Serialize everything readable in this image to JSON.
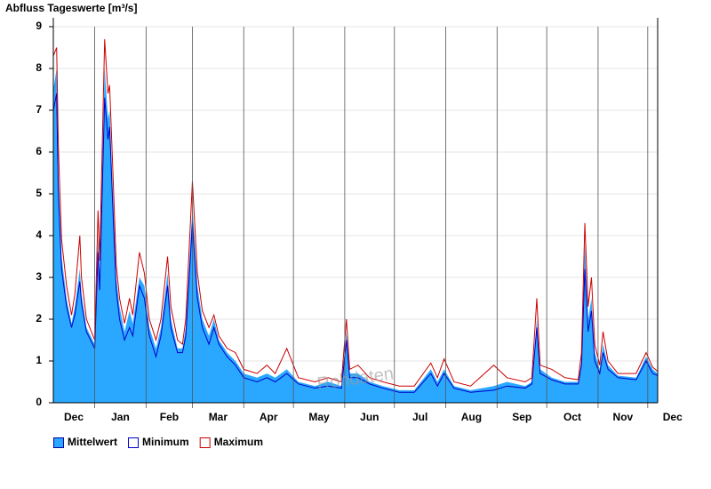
{
  "chart_data": {
    "type": "area-line",
    "title": "Abfluss Tageswerte [m³/s]",
    "watermark": "Rohdaten",
    "x": [
      0,
      2,
      3,
      4,
      5,
      8,
      11,
      13,
      16,
      17,
      20,
      25,
      27,
      28,
      31,
      33,
      34,
      36,
      38,
      40,
      43,
      46,
      48,
      52,
      55,
      58,
      62,
      65,
      69,
      71,
      75,
      78,
      80,
      84,
      87,
      90,
      94,
      97,
      100,
      105,
      110,
      115,
      123,
      129,
      134,
      141,
      148,
      158,
      166,
      174,
      177,
      179,
      184,
      191,
      199,
      209,
      218,
      228,
      232,
      236,
      242,
      252,
      266,
      274,
      285,
      289,
      292,
      294,
      301,
      309,
      317,
      319,
      321,
      323,
      325,
      327,
      330,
      332,
      335,
      341,
      352,
      358,
      362,
      365
    ],
    "series": [
      {
        "name": "Mittelwert",
        "style": "area",
        "color": "#2aa8ff",
        "border": "#0000aa",
        "values": [
          7.5,
          8.0,
          5.5,
          4.5,
          3.5,
          2.5,
          1.9,
          2.3,
          3.2,
          2.6,
          1.8,
          1.4,
          4.0,
          3.0,
          8.0,
          6.8,
          7.0,
          5.0,
          3.0,
          2.3,
          1.7,
          2.2,
          1.9,
          3.0,
          2.8,
          1.8,
          1.3,
          1.8,
          3.1,
          2.0,
          1.3,
          1.3,
          1.8,
          4.7,
          2.8,
          2.0,
          1.6,
          2.0,
          1.5,
          1.2,
          1.0,
          0.7,
          0.6,
          0.7,
          0.6,
          0.8,
          0.5,
          0.4,
          0.5,
          0.4,
          1.7,
          0.7,
          0.7,
          0.5,
          0.4,
          0.3,
          0.3,
          0.8,
          0.5,
          0.8,
          0.4,
          0.3,
          0.4,
          0.5,
          0.4,
          0.5,
          2.0,
          0.8,
          0.6,
          0.5,
          0.5,
          1.0,
          3.8,
          2.0,
          2.5,
          1.2,
          0.8,
          1.4,
          0.9,
          0.65,
          0.6,
          1.1,
          0.8,
          0.7
        ]
      },
      {
        "name": "Minimum",
        "style": "line",
        "color": "#0000cc",
        "values": [
          7.0,
          7.4,
          5.0,
          4.1,
          3.2,
          2.3,
          1.8,
          2.1,
          2.9,
          2.4,
          1.7,
          1.3,
          3.6,
          2.7,
          7.3,
          6.3,
          6.6,
          4.6,
          2.7,
          2.0,
          1.5,
          1.8,
          1.6,
          2.8,
          2.5,
          1.6,
          1.1,
          1.6,
          2.8,
          1.8,
          1.2,
          1.2,
          1.6,
          4.3,
          2.5,
          1.8,
          1.4,
          1.8,
          1.4,
          1.1,
          0.9,
          0.6,
          0.5,
          0.6,
          0.5,
          0.7,
          0.45,
          0.35,
          0.4,
          0.35,
          1.5,
          0.6,
          0.6,
          0.45,
          0.35,
          0.25,
          0.25,
          0.7,
          0.4,
          0.7,
          0.35,
          0.25,
          0.3,
          0.4,
          0.35,
          0.45,
          1.8,
          0.7,
          0.55,
          0.45,
          0.45,
          0.9,
          3.2,
          1.7,
          2.2,
          1.0,
          0.7,
          1.2,
          0.8,
          0.6,
          0.55,
          1.0,
          0.7,
          0.65
        ]
      },
      {
        "name": "Maximum",
        "style": "line",
        "color": "#cc0000",
        "values": [
          8.3,
          8.5,
          6.2,
          5.0,
          3.9,
          2.8,
          2.1,
          2.6,
          4.0,
          3.0,
          2.0,
          1.5,
          4.6,
          3.4,
          8.7,
          7.4,
          7.6,
          5.5,
          3.3,
          2.5,
          1.9,
          2.5,
          2.1,
          3.6,
          3.1,
          2.0,
          1.5,
          2.0,
          3.5,
          2.3,
          1.5,
          1.4,
          2.0,
          5.3,
          3.1,
          2.2,
          1.8,
          2.1,
          1.6,
          1.3,
          1.2,
          0.8,
          0.7,
          0.9,
          0.7,
          1.3,
          0.6,
          0.5,
          0.6,
          0.5,
          2.0,
          0.8,
          0.9,
          0.6,
          0.5,
          0.4,
          0.4,
          0.95,
          0.6,
          1.05,
          0.5,
          0.4,
          0.9,
          0.6,
          0.5,
          0.6,
          2.5,
          0.9,
          0.8,
          0.6,
          0.55,
          1.2,
          4.3,
          2.3,
          3.0,
          1.4,
          0.9,
          1.7,
          1.0,
          0.7,
          0.7,
          1.2,
          0.85,
          0.75
        ]
      }
    ],
    "xlim": [
      0,
      365
    ],
    "xticks": [
      {
        "value": -6,
        "label": "Dec"
      },
      {
        "value": 25,
        "label": "Jan"
      },
      {
        "value": 56,
        "label": "Feb"
      },
      {
        "value": 84,
        "label": "Mar"
      },
      {
        "value": 115,
        "label": "Apr"
      },
      {
        "value": 145,
        "label": "May"
      },
      {
        "value": 176,
        "label": "Jun"
      },
      {
        "value": 206,
        "label": "Jul"
      },
      {
        "value": 237,
        "label": "Aug"
      },
      {
        "value": 268,
        "label": "Sep"
      },
      {
        "value": 298,
        "label": "Oct"
      },
      {
        "value": 329,
        "label": "Nov"
      },
      {
        "value": 359,
        "label": "Dec"
      }
    ],
    "ylim": [
      0,
      9
    ],
    "yticks": [
      0,
      1,
      2,
      3,
      4,
      5,
      6,
      7,
      8,
      9
    ],
    "grid": true
  }
}
